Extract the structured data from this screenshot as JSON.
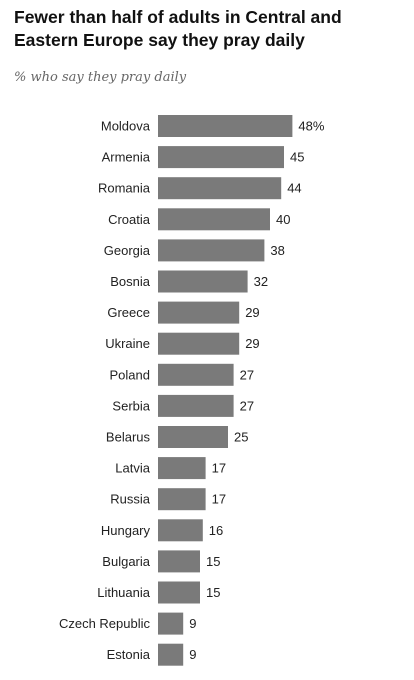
{
  "chart_data": {
    "type": "bar",
    "orientation": "horizontal",
    "title": "Fewer than half of adults in Central and Eastern Europe say they pray daily",
    "subtitle": "% who say they pray daily",
    "categories": [
      "Moldova",
      "Armenia",
      "Romania",
      "Croatia",
      "Georgia",
      "Bosnia",
      "Greece",
      "Ukraine",
      "Poland",
      "Serbia",
      "Belarus",
      "Latvia",
      "Russia",
      "Hungary",
      "Bulgaria",
      "Lithuania",
      "Czech Republic",
      "Estonia"
    ],
    "values": [
      48,
      45,
      44,
      40,
      38,
      32,
      29,
      29,
      27,
      27,
      25,
      17,
      17,
      16,
      15,
      15,
      9,
      9
    ],
    "value_labels": [
      "48%",
      "45",
      "44",
      "40",
      "38",
      "32",
      "29",
      "29",
      "27",
      "27",
      "25",
      "17",
      "17",
      "16",
      "15",
      "15",
      "9",
      "9"
    ],
    "bar_color": "#7a7a7a",
    "grid": false,
    "legend": "none"
  }
}
